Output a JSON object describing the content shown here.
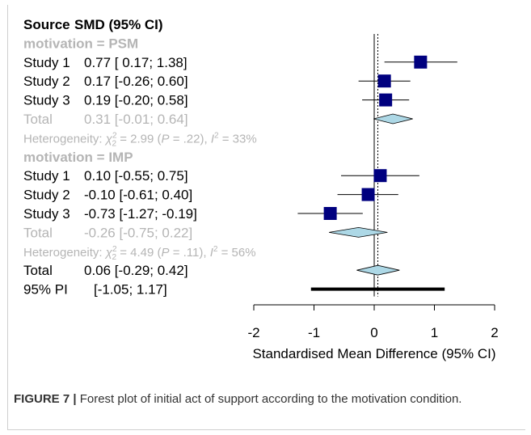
{
  "chart_data": {
    "type": "forest",
    "header": {
      "source": "Source",
      "effect": "SMD (95% CI)"
    },
    "rows": [
      {
        "kind": "group",
        "label": "motivation = PSM"
      },
      {
        "kind": "study",
        "label": "Study 1",
        "text": "0.77 [ 0.17;  1.38]",
        "est": 0.77,
        "lo": 0.17,
        "hi": 1.38
      },
      {
        "kind": "study",
        "label": "Study 2",
        "text": "0.17 [-0.26;  0.60]",
        "est": 0.17,
        "lo": -0.26,
        "hi": 0.6
      },
      {
        "kind": "study",
        "label": "Study 3",
        "text": "0.19 [-0.20;  0.58]",
        "est": 0.19,
        "lo": -0.2,
        "hi": 0.58
      },
      {
        "kind": "subtotal",
        "label": "Total",
        "text": "0.31 [-0.01;  0.64]",
        "est": 0.31,
        "lo": -0.01,
        "hi": 0.64
      },
      {
        "kind": "het",
        "prefix": "Heterogeneity: ",
        "chi": "χ",
        "chisup": "2",
        "chisub": "2",
        "mid": " = 2.99 (",
        "p": "P",
        "pval": " = .22), ",
        "i": "I",
        "isup": "2",
        "ival": " = 33%"
      },
      {
        "kind": "group",
        "label": "motivation = IMP"
      },
      {
        "kind": "study",
        "label": "Study 1",
        "text": "0.10 [-0.55;  0.75]",
        "est": 0.1,
        "lo": -0.55,
        "hi": 0.75
      },
      {
        "kind": "study",
        "label": "Study 2",
        "text": "-0.10 [-0.61;  0.40]",
        "est": -0.1,
        "lo": -0.61,
        "hi": 0.4
      },
      {
        "kind": "study",
        "label": "Study 3",
        "text": "-0.73 [-1.27; -0.19]",
        "est": -0.73,
        "lo": -1.27,
        "hi": -0.19
      },
      {
        "kind": "subtotal",
        "label": "Total",
        "text": "-0.26 [-0.75;  0.22]",
        "est": -0.26,
        "lo": -0.75,
        "hi": 0.22
      },
      {
        "kind": "het",
        "prefix": "Heterogeneity: ",
        "chi": "χ",
        "chisup": "2",
        "chisub": "2",
        "mid": " = 4.49 (",
        "p": "P",
        "pval": " = .11), ",
        "i": "I",
        "isup": "2",
        "ival": " = 56%"
      },
      {
        "kind": "total",
        "label": "Total",
        "text": "0.06 [-0.29;  0.42]",
        "est": 0.06,
        "lo": -0.29,
        "hi": 0.42
      },
      {
        "kind": "pi",
        "label": "95% PI",
        "text": "[-1.05;  1.17]",
        "lo": -1.05,
        "hi": 1.17
      }
    ],
    "xaxis": {
      "ticks": [
        -2,
        -1,
        0,
        1,
        2
      ],
      "tick_labels": [
        "-2",
        "-1",
        "0",
        "1",
        "2"
      ],
      "range": [
        -2,
        2
      ],
      "label": "Standardised Mean Difference (95% CI)"
    },
    "colors": {
      "square": "#00007f",
      "diamond": "#add8e6",
      "grey_text": "#b5b5b5",
      "reference_line": "#000000"
    }
  },
  "caption": {
    "figure_label": "FIGURE 7 |",
    "text": " Forest plot of initial act of support according to the motivation condition."
  }
}
